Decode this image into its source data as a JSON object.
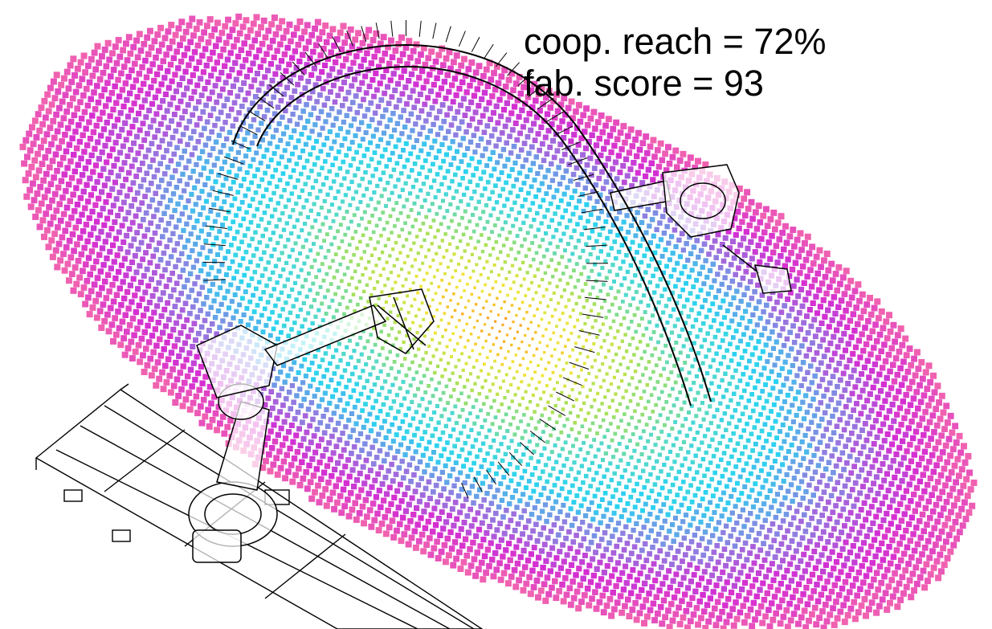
{
  "stats": {
    "reach_label": "coop. reach = 72%",
    "score_label": "fab. score = 93"
  },
  "reach_map": {
    "palette": [
      "#ff9d1e",
      "#f0e63c",
      "#a8e05a",
      "#4fd8d0",
      "#2ad3f0",
      "#8f7fe0",
      "#d42ed2",
      "#f062b0"
    ]
  },
  "illustration": {
    "objects": [
      "robot-arm",
      "second-robot-arm",
      "linear-track",
      "arch-assembly"
    ],
    "line_color": "#000000"
  }
}
